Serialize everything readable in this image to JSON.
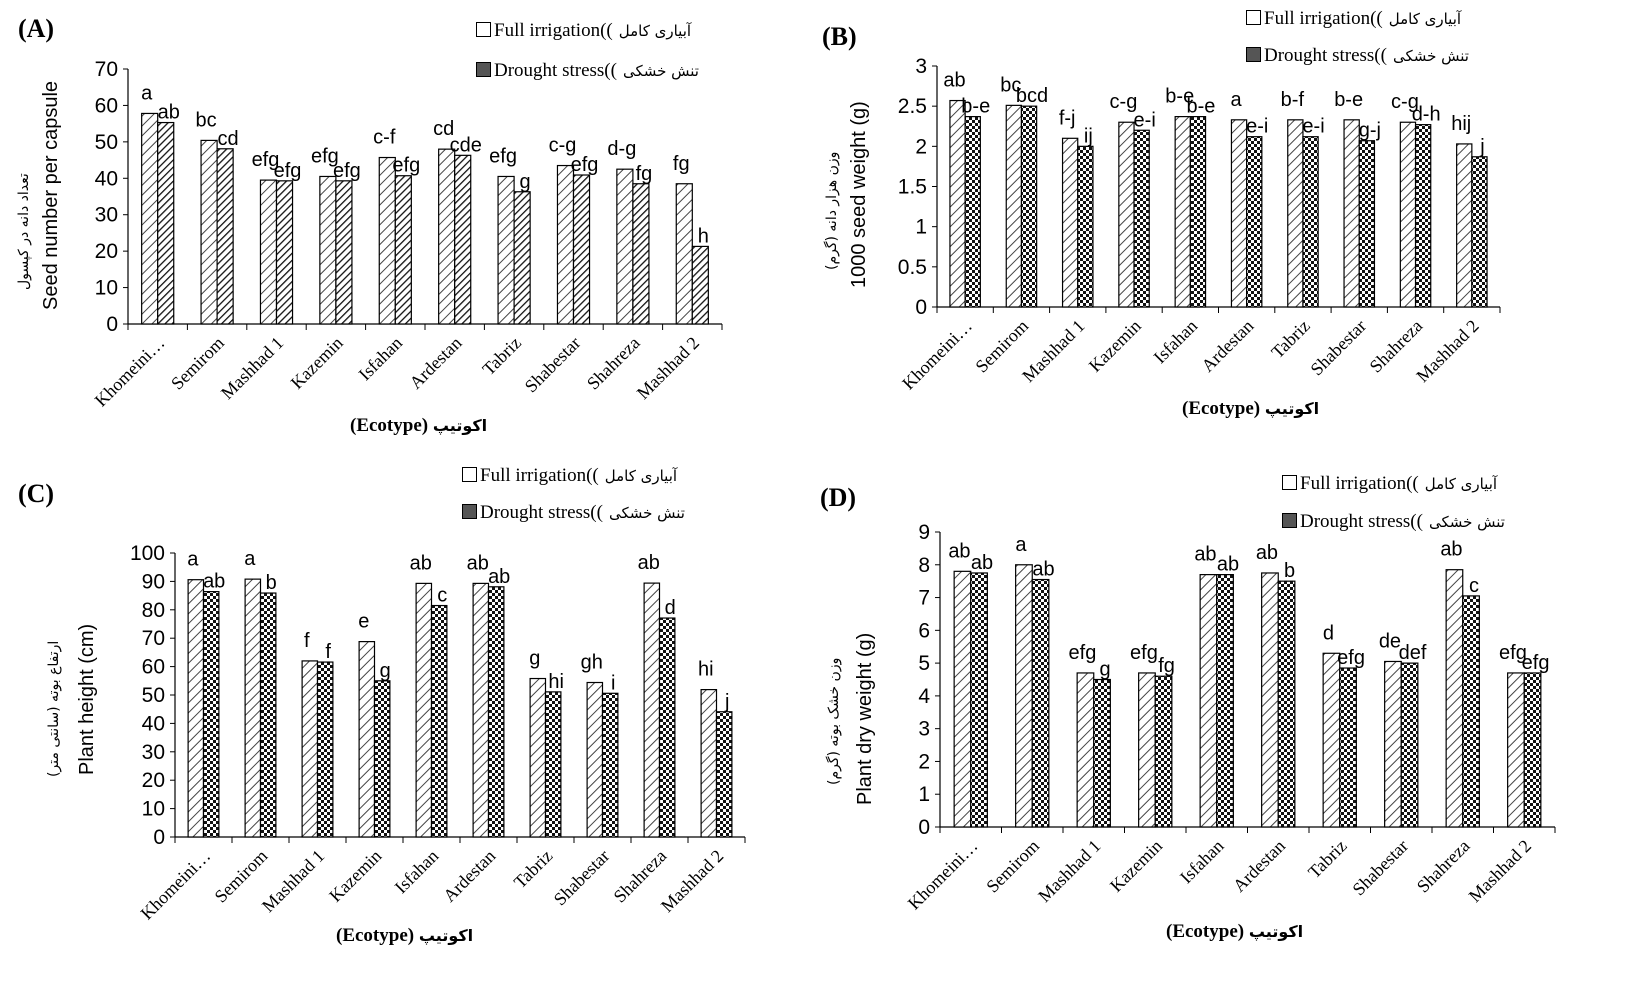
{
  "legend": {
    "full_en": "Full irrigation((",
    "full_fa": "آبیاری کامل",
    "drought_en": "Drought stress((",
    "drought_fa": "تنش خشکی"
  },
  "x_label_en": "(Ecotype)",
  "x_label_fa": "اکوتیپ",
  "chart_data": [
    {
      "panel": "(A)",
      "type": "bar",
      "ylabel": "Seed number per capsule",
      "ylabel_fa": "تعداد دانه در کپسول",
      "ylim": [
        0,
        70
      ],
      "yticks": [
        0,
        10,
        20,
        30,
        40,
        50,
        60,
        70
      ],
      "categories": [
        "Khomeini…",
        "Semirom",
        "Mashhad 1",
        "Kazemin",
        "Isfahan",
        "Ardestan",
        "Tabriz",
        "Shabestar",
        "Shahreza",
        "Mashhad 2"
      ],
      "series": [
        {
          "name": "Full irrigation",
          "values": [
            57.8,
            50.4,
            39.5,
            40.5,
            45.7,
            48.0,
            40.5,
            43.5,
            42.5,
            38.5
          ],
          "labels": [
            "a",
            "bc",
            "efg",
            "efg",
            "c-f",
            "cd",
            "efg",
            "c-g",
            "d-g",
            "fg"
          ]
        },
        {
          "name": "Drought stress",
          "values": [
            55.3,
            48.1,
            39.3,
            39.3,
            40.7,
            46.3,
            36.3,
            40.9,
            38.5,
            21.3
          ],
          "labels": [
            "ab",
            "cd",
            "efg",
            "efg",
            "efg",
            "cde",
            "g",
            "efg",
            "fg",
            "h"
          ]
        }
      ]
    },
    {
      "panel": "(B)",
      "type": "bar",
      "ylabel": "1000 seed weight (g)",
      "ylabel_fa": "وزن هزار دانه (گرم)",
      "ylim": [
        0,
        3
      ],
      "yticks": [
        0,
        0.5,
        1,
        1.5,
        2,
        2.5,
        3
      ],
      "categories": [
        "Khomeini…",
        "Semirom",
        "Mashhad 1",
        "Kazemin",
        "Isfahan",
        "Ardestan",
        "Tabriz",
        "Shabestar",
        "Shahreza",
        "Mashhad 2"
      ],
      "series": [
        {
          "name": "Full irrigation",
          "values": [
            2.57,
            2.51,
            2.1,
            2.3,
            2.37,
            2.33,
            2.33,
            2.33,
            2.3,
            2.03
          ],
          "labels": [
            "ab",
            "bc",
            "f-j",
            "c-g",
            "b-e",
            "a",
            "b-f",
            "b-e",
            "c-g",
            "hij"
          ]
        },
        {
          "name": "Drought stress",
          "values": [
            2.37,
            2.5,
            2.0,
            2.2,
            2.37,
            2.12,
            2.12,
            2.07,
            2.27,
            1.87
          ],
          "labels": [
            "b-e",
            "bcd",
            "ij",
            "e-i",
            "b-e",
            "e-i",
            "e-i",
            "g-j",
            "d-h",
            "j"
          ]
        }
      ]
    },
    {
      "panel": "(C)",
      "type": "bar",
      "ylabel": "Plant height (cm)",
      "ylabel_fa": "ارتفاع بوته (سانتی متر)",
      "ylim": [
        0,
        100
      ],
      "yticks": [
        0,
        10,
        20,
        30,
        40,
        50,
        60,
        70,
        80,
        90,
        100
      ],
      "categories": [
        "Khomeini…",
        "Semirom",
        "Mashhad 1",
        "Kazemin",
        "Isfahan",
        "Ardestan",
        "Tabriz",
        "Shabestar",
        "Shahreza",
        "Mashhad 2"
      ],
      "series": [
        {
          "name": "Full irrigation",
          "values": [
            90.6,
            90.8,
            62.0,
            68.8,
            89.3,
            89.3,
            55.8,
            54.4,
            89.4,
            51.9
          ],
          "labels": [
            "a",
            "a",
            "f",
            "e",
            "ab",
            "ab",
            "g",
            "gh",
            "ab",
            "hi"
          ]
        },
        {
          "name": "Drought stress",
          "values": [
            86.4,
            85.9,
            61.6,
            55.0,
            81.5,
            88.1,
            51.1,
            50.6,
            77.1,
            44.1
          ],
          "labels": [
            "ab",
            "b",
            "f",
            "g",
            "c",
            "ab",
            "hi",
            "i",
            "d",
            "j"
          ]
        }
      ]
    },
    {
      "panel": "(D)",
      "type": "bar",
      "ylabel": "Plant dry weight (g)",
      "ylabel_fa": "وزن خشک بوته (گرم)",
      "ylim": [
        0,
        9
      ],
      "yticks": [
        0,
        1,
        2,
        3,
        4,
        5,
        6,
        7,
        8,
        9
      ],
      "categories": [
        "Khomeini…",
        "Semirom",
        "Mashhad 1",
        "Kazemin",
        "Isfahan",
        "Ardestan",
        "Tabriz",
        "Shabestar",
        "Shahreza",
        "Mashhad 2"
      ],
      "series": [
        {
          "name": "Full irrigation",
          "values": [
            7.8,
            8.0,
            4.7,
            4.7,
            7.7,
            7.75,
            5.3,
            5.05,
            7.85,
            4.7
          ],
          "labels": [
            "ab",
            "a",
            "efg",
            "efg",
            "ab",
            "ab",
            "d",
            "de",
            "ab",
            "efg"
          ]
        },
        {
          "name": "Drought stress",
          "values": [
            7.75,
            7.55,
            4.5,
            4.6,
            7.7,
            7.5,
            4.85,
            5.0,
            7.05,
            4.7
          ],
          "labels": [
            "ab",
            "ab",
            "g",
            "fg",
            "ab",
            "b",
            "efg",
            "def",
            "c",
            "efg"
          ]
        }
      ]
    }
  ]
}
